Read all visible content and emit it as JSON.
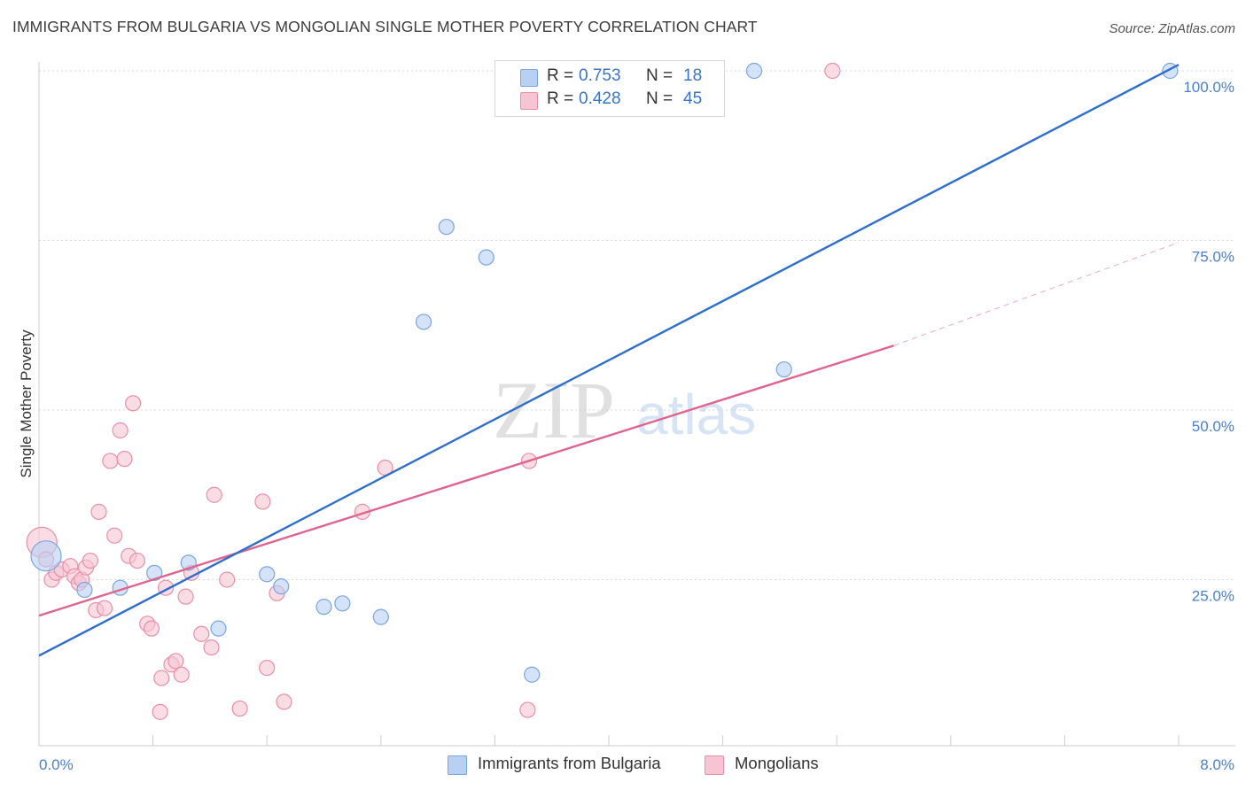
{
  "header": {
    "title": "IMMIGRANTS FROM BULGARIA VS MONGOLIAN SINGLE MOTHER POVERTY CORRELATION CHART",
    "source": "Source: ZipAtlas.com"
  },
  "watermark": {
    "part1": "ZIP",
    "part2": "atlas"
  },
  "legend": {
    "r_label": "R =",
    "n_label": "N =",
    "rows": [
      {
        "r": "0.753",
        "n": "18"
      },
      {
        "r": "0.428",
        "n": "45"
      }
    ]
  },
  "colors": {
    "series1_fill": "#b8d1f3",
    "series1_stroke": "#7aa6e0",
    "series1_line": "#2f6fcc",
    "series2_fill": "#f7c4d3",
    "series2_stroke": "#ea8faa",
    "series2_line": "#e0648e",
    "tick": "#4a7fd0",
    "grid": "#d9d9d9"
  },
  "chart_data": {
    "type": "scatter",
    "title": "IMMIGRANTS FROM BULGARIA VS MONGOLIAN SINGLE MOTHER POVERTY CORRELATION CHART",
    "xlabel": "",
    "ylabel": "Single Mother Poverty",
    "xlim": [
      0,
      8
    ],
    "ylim": [
      0,
      100
    ],
    "x_tick_labels": [
      "0.0%",
      "8.0%"
    ],
    "y_ticks": [
      25,
      50,
      75,
      100
    ],
    "y_tick_labels": [
      "25.0%",
      "50.0%",
      "75.0%",
      "100.0%"
    ],
    "grid": true,
    "legend_position": "top-center",
    "series": [
      {
        "name": "Immigrants from Bulgaria",
        "r": 0.753,
        "n": 18,
        "trend": {
          "x0": 0,
          "y0": 13.8,
          "x1": 8.0,
          "y1": 100.9
        },
        "points": [
          {
            "x": 0.05,
            "y": 28.5,
            "big": true
          },
          {
            "x": 0.32,
            "y": 23.5
          },
          {
            "x": 0.57,
            "y": 23.8
          },
          {
            "x": 0.81,
            "y": 26.0
          },
          {
            "x": 1.05,
            "y": 27.5
          },
          {
            "x": 1.26,
            "y": 17.8
          },
          {
            "x": 1.6,
            "y": 25.8
          },
          {
            "x": 1.7,
            "y": 24.0
          },
          {
            "x": 2.0,
            "y": 21.0
          },
          {
            "x": 2.13,
            "y": 21.5
          },
          {
            "x": 2.4,
            "y": 19.5
          },
          {
            "x": 2.7,
            "y": 63.0
          },
          {
            "x": 2.86,
            "y": 77.0
          },
          {
            "x": 3.14,
            "y": 72.5
          },
          {
            "x": 3.46,
            "y": 11.0
          },
          {
            "x": 5.02,
            "y": 100.0
          },
          {
            "x": 5.23,
            "y": 56.0
          },
          {
            "x": 7.94,
            "y": 100.0
          }
        ]
      },
      {
        "name": "Mongolians",
        "r": 0.428,
        "n": 45,
        "trend": {
          "x0": 0,
          "y0": 19.7,
          "x1": 6.0,
          "y1": 59.5
        },
        "trend_ext": {
          "x0": 6.0,
          "y0": 59.5,
          "x1": 8.0,
          "y1": 74.7
        },
        "points": [
          {
            "x": 0.02,
            "y": 30.5,
            "big": true
          },
          {
            "x": 0.05,
            "y": 28.0
          },
          {
            "x": 0.09,
            "y": 25.0
          },
          {
            "x": 0.12,
            "y": 26.0
          },
          {
            "x": 0.16,
            "y": 26.5
          },
          {
            "x": 0.22,
            "y": 27.0
          },
          {
            "x": 0.25,
            "y": 25.5
          },
          {
            "x": 0.28,
            "y": 24.5
          },
          {
            "x": 0.3,
            "y": 25.0
          },
          {
            "x": 0.33,
            "y": 26.8
          },
          {
            "x": 0.36,
            "y": 27.8
          },
          {
            "x": 0.4,
            "y": 20.5
          },
          {
            "x": 0.42,
            "y": 35.0
          },
          {
            "x": 0.46,
            "y": 20.8
          },
          {
            "x": 0.5,
            "y": 42.5
          },
          {
            "x": 0.53,
            "y": 31.5
          },
          {
            "x": 0.57,
            "y": 47.0
          },
          {
            "x": 0.6,
            "y": 42.8
          },
          {
            "x": 0.63,
            "y": 28.5
          },
          {
            "x": 0.66,
            "y": 51.0
          },
          {
            "x": 0.69,
            "y": 27.8
          },
          {
            "x": 0.76,
            "y": 18.5
          },
          {
            "x": 0.79,
            "y": 17.8
          },
          {
            "x": 0.85,
            "y": 5.5
          },
          {
            "x": 0.86,
            "y": 10.5
          },
          {
            "x": 0.89,
            "y": 23.8
          },
          {
            "x": 0.93,
            "y": 12.5
          },
          {
            "x": 0.96,
            "y": 13.0
          },
          {
            "x": 1.0,
            "y": 11.0
          },
          {
            "x": 1.03,
            "y": 22.5
          },
          {
            "x": 1.07,
            "y": 26.0
          },
          {
            "x": 1.14,
            "y": 17.0
          },
          {
            "x": 1.21,
            "y": 15.0
          },
          {
            "x": 1.23,
            "y": 37.5
          },
          {
            "x": 1.32,
            "y": 25.0
          },
          {
            "x": 1.41,
            "y": 6.0
          },
          {
            "x": 1.57,
            "y": 36.5
          },
          {
            "x": 1.6,
            "y": 12.0
          },
          {
            "x": 1.67,
            "y": 23.0
          },
          {
            "x": 1.72,
            "y": 7.0
          },
          {
            "x": 2.27,
            "y": 35.0
          },
          {
            "x": 2.43,
            "y": 41.5
          },
          {
            "x": 3.43,
            "y": 5.8
          },
          {
            "x": 3.44,
            "y": 42.5
          },
          {
            "x": 5.57,
            "y": 100.0
          }
        ]
      }
    ]
  }
}
